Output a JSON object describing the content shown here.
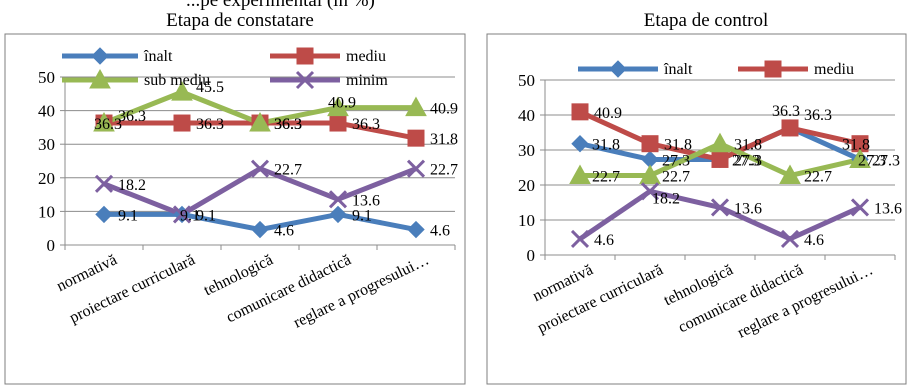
{
  "top_caption": "...pe experimental (în %)",
  "chart_data": [
    {
      "type": "line",
      "title": "Etapa de constatare",
      "categories": [
        "normativă",
        "proiectare curriculară",
        "tehnologică",
        "comunicare didactică",
        "reglare a progresului…"
      ],
      "ylim": [
        0,
        50
      ],
      "yticks": [
        0,
        10,
        20,
        30,
        40,
        50
      ],
      "grid": true,
      "legend": "top",
      "series": [
        {
          "name": "înalt",
          "values": [
            9.1,
            9.1,
            4.6,
            9.1,
            4.6
          ],
          "color": "#4a7ebb",
          "marker": "diamond"
        },
        {
          "name": "mediu",
          "values": [
            36.3,
            36.3,
            36.3,
            36.3,
            31.8
          ],
          "color": "#be4b48",
          "marker": "square"
        },
        {
          "name": "sub mediu",
          "values": [
            36.3,
            45.5,
            36.3,
            40.9,
            40.9
          ],
          "color": "#98b954",
          "marker": "triangle"
        },
        {
          "name": "minim",
          "values": [
            18.2,
            9.1,
            22.7,
            13.6,
            22.7
          ],
          "color": "#7d60a0",
          "marker": "x"
        }
      ]
    },
    {
      "type": "line",
      "title": "Etapa de control",
      "categories": [
        "normativă",
        "proiectare curriculară",
        "tehnologică",
        "comunicare didactică",
        "reglare a progresului…"
      ],
      "ylim": [
        0,
        50
      ],
      "yticks": [
        0,
        10,
        20,
        30,
        40,
        50
      ],
      "grid": true,
      "legend": "top",
      "series": [
        {
          "name": "înalt",
          "values": [
            31.8,
            27.3,
            27.3,
            36.3,
            27.3
          ],
          "color": "#4a7ebb",
          "marker": "diamond"
        },
        {
          "name": "mediu",
          "values": [
            40.9,
            31.8,
            27.3,
            36.3,
            31.8
          ],
          "color": "#be4b48",
          "marker": "square"
        },
        {
          "name": "",
          "values": [
            22.7,
            22.7,
            31.8,
            22.7,
            27.3
          ],
          "color": "#98b954",
          "marker": "triangle"
        },
        {
          "name": "",
          "values": [
            4.6,
            18.2,
            13.6,
            4.6,
            13.6
          ],
          "color": "#7d60a0",
          "marker": "x"
        }
      ]
    }
  ]
}
